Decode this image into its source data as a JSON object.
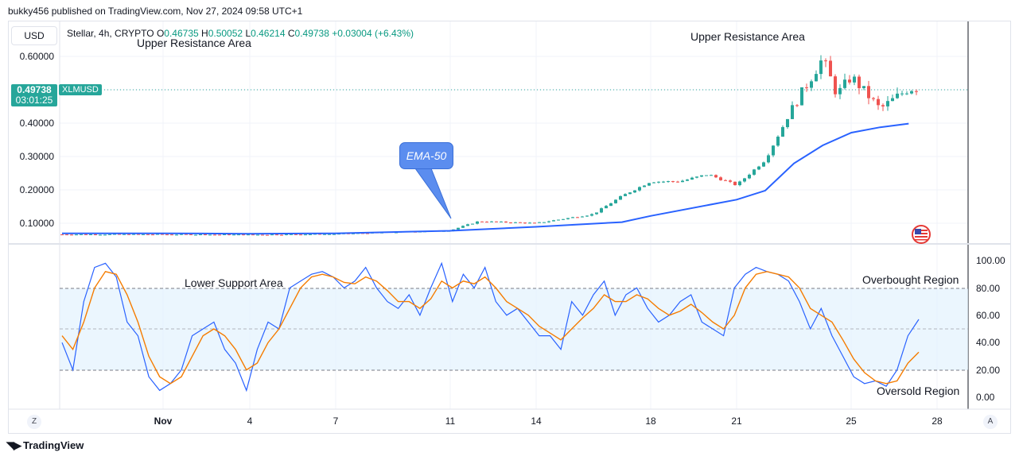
{
  "header": {
    "published": "bukky456 published on TradingView.com, Nov 27, 2024 09:58 UTC+1"
  },
  "currency_button": "USD",
  "legend": {
    "symbol_info": "Stellar, 4h, CRYPTO",
    "open_label": "O",
    "open": "0.46735",
    "high_label": "H",
    "high": "0.50052",
    "low_label": "L",
    "low": "0.46214",
    "close_label": "C",
    "close": "0.49738",
    "change": "+0.03004 (+6.43%)"
  },
  "annotations": {
    "upper_resistance_left": "Upper Resistance Area",
    "upper_resistance_right": "Upper Resistance Area",
    "ema_label": "EMA-50",
    "lower_support": "Lower Support Area",
    "overbought": "Overbought Region",
    "oversold": "Oversold Region"
  },
  "price_badge": {
    "price": "0.49738",
    "countdown": "03:01:25",
    "symbol": "XLMUSD"
  },
  "price_axis": [
    "0.60000",
    "0.40000",
    "0.30000",
    "0.20000",
    "0.10000"
  ],
  "osc_axis": [
    "100.00",
    "80.00",
    "60.00",
    "40.00",
    "20.00",
    "0.00"
  ],
  "date_axis": [
    "Nov",
    "4",
    "7",
    "11",
    "14",
    "18",
    "21",
    "25",
    "28"
  ],
  "corner_buttons": {
    "left": "Z",
    "right": "A"
  },
  "footer": {
    "brand": "TradingView"
  },
  "colors": {
    "up": "#26a69a",
    "down": "#ef5350",
    "ema": "#2962ff",
    "stoch_k": "#2962ff",
    "stoch_d": "#f57c00",
    "band": "#e3f2fd"
  },
  "chart_data": [
    {
      "type": "line",
      "series": [
        {
          "name": "EMA-50",
          "x": [
            "Nov 1",
            "Nov 4",
            "Nov 7",
            "Nov 11",
            "Nov 14",
            "Nov 17",
            "Nov 18",
            "Nov 21",
            "Nov 22",
            "Nov 23",
            "Nov 24",
            "Nov 25",
            "Nov 26",
            "Nov 27"
          ],
          "values": [
            0.097,
            0.096,
            0.097,
            0.104,
            0.115,
            0.128,
            0.145,
            0.19,
            0.215,
            0.29,
            0.34,
            0.375,
            0.39,
            0.4
          ]
        },
        {
          "name": "",
          "x": [
            "Nov 1",
            "Nov 4",
            "Nov 7",
            "Nov 11",
            "Nov 12",
            "Nov 14",
            "Nov 16",
            "Nov 17",
            "Nov 18",
            "Nov 19",
            "Nov 20",
            "Nov 21",
            "Nov 22",
            "Nov 23",
            "Nov 24",
            "Nov 24.5",
            "Nov 25",
            "Nov 26",
            "Nov 27"
          ],
          "values": [
            0.094,
            0.093,
            0.095,
            0.105,
            0.13,
            0.125,
            0.15,
            0.2,
            0.24,
            0.24,
            0.26,
            0.23,
            0.3,
            0.45,
            0.58,
            0.48,
            0.53,
            0.44,
            0.49738
          ]
        }
      ],
      "ylim": [
        0.07,
        0.68
      ]
    },
    {
      "type": "line",
      "series": [
        {
          "name": "",
          "x": [
            0,
            1,
            2,
            3,
            4,
            5,
            6,
            7,
            8,
            9,
            10,
            11,
            12,
            13,
            14,
            15,
            16,
            17,
            18,
            19,
            20,
            21,
            22,
            23,
            24,
            25,
            26,
            27,
            28,
            29,
            30,
            31,
            32,
            33,
            34,
            35,
            36,
            37,
            38,
            39,
            40,
            41,
            42,
            43,
            44,
            45,
            46,
            47,
            48,
            49,
            50,
            51,
            52,
            53,
            54,
            55,
            56,
            57,
            58,
            59,
            60,
            61,
            62,
            63,
            64,
            65,
            66,
            67,
            68,
            69,
            70,
            71,
            72,
            73,
            74,
            75,
            76,
            77,
            78,
            79
          ],
          "values": [
            40,
            20,
            70,
            95,
            98,
            88,
            55,
            45,
            15,
            5,
            10,
            20,
            45,
            50,
            55,
            35,
            25,
            5,
            35,
            55,
            50,
            80,
            85,
            90,
            92,
            88,
            80,
            85,
            95,
            80,
            70,
            65,
            75,
            60,
            80,
            98,
            70,
            90,
            80,
            95,
            70,
            60,
            65,
            55,
            45,
            45,
            35,
            70,
            60,
            75,
            85,
            60,
            75,
            80,
            65,
            55,
            60,
            70,
            75,
            55,
            50,
            45,
            80,
            90,
            95,
            92,
            90,
            85,
            70,
            50,
            65,
            45,
            30,
            15,
            10,
            12,
            8,
            20,
            45,
            57
          ]
        },
        {
          "name": "",
          "x": [
            0,
            1,
            2,
            3,
            4,
            5,
            6,
            7,
            8,
            9,
            10,
            11,
            12,
            13,
            14,
            15,
            16,
            17,
            18,
            19,
            20,
            21,
            22,
            23,
            24,
            25,
            26,
            27,
            28,
            29,
            30,
            31,
            32,
            33,
            34,
            35,
            36,
            37,
            38,
            39,
            40,
            41,
            42,
            43,
            44,
            45,
            46,
            47,
            48,
            49,
            50,
            51,
            52,
            53,
            54,
            55,
            56,
            57,
            58,
            59,
            60,
            61,
            62,
            63,
            64,
            65,
            66,
            67,
            68,
            69,
            70,
            71,
            72,
            73,
            74,
            75,
            76,
            77,
            78,
            79
          ],
          "values": [
            45,
            35,
            55,
            80,
            92,
            90,
            75,
            55,
            30,
            15,
            10,
            15,
            30,
            45,
            50,
            45,
            35,
            20,
            25,
            40,
            50,
            65,
            80,
            88,
            90,
            88,
            84,
            83,
            88,
            85,
            78,
            70,
            70,
            65,
            72,
            85,
            80,
            85,
            83,
            88,
            80,
            70,
            65,
            60,
            52,
            47,
            42,
            50,
            58,
            65,
            75,
            70,
            70,
            75,
            72,
            65,
            60,
            63,
            68,
            62,
            55,
            50,
            60,
            80,
            90,
            92,
            90,
            88,
            80,
            65,
            60,
            55,
            42,
            28,
            18,
            12,
            10,
            12,
            25,
            33
          ]
        }
      ],
      "ylim": [
        0,
        100
      ]
    }
  ]
}
